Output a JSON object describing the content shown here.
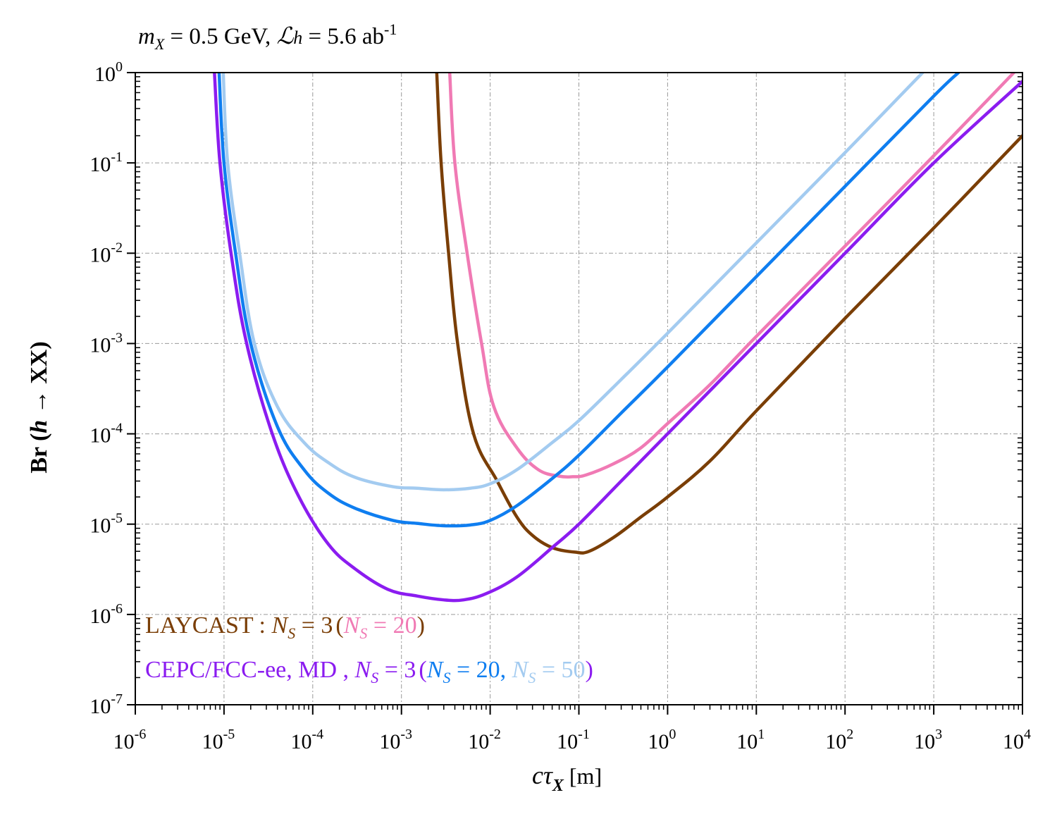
{
  "chart_data": {
    "type": "line",
    "title_parts": {
      "m": "m",
      "sub_x": "X",
      "eq1": " = 0.5 GeV, ",
      "L": "ℒ",
      "h": "h",
      "eq2": " = 5.6 ab",
      "sup": "-1"
    },
    "xlabel": {
      "main": "cτ",
      "sub": "X",
      "unit": " [m]"
    },
    "ylabel": {
      "pre": "Br (",
      "h": "h",
      "post": " → XX)"
    },
    "xscale": "log",
    "yscale": "log",
    "xlim": [
      1e-06,
      10000.0
    ],
    "ylim": [
      1e-07,
      1
    ],
    "x_ticks": [
      {
        "base": "10",
        "exp": "-6"
      },
      {
        "base": "10",
        "exp": "-5"
      },
      {
        "base": "10",
        "exp": "-4"
      },
      {
        "base": "10",
        "exp": "-3"
      },
      {
        "base": "10",
        "exp": "-2"
      },
      {
        "base": "10",
        "exp": "-1"
      },
      {
        "base": "10",
        "exp": "0"
      },
      {
        "base": "10",
        "exp": "1"
      },
      {
        "base": "10",
        "exp": "2"
      },
      {
        "base": "10",
        "exp": "3"
      },
      {
        "base": "10",
        "exp": "4"
      }
    ],
    "y_ticks": [
      {
        "base": "10",
        "exp": "-7"
      },
      {
        "base": "10",
        "exp": "-6"
      },
      {
        "base": "10",
        "exp": "-5"
      },
      {
        "base": "10",
        "exp": "-4"
      },
      {
        "base": "10",
        "exp": "-3"
      },
      {
        "base": "10",
        "exp": "-2"
      },
      {
        "base": "10",
        "exp": "-1"
      },
      {
        "base": "10",
        "exp": "0"
      }
    ],
    "grid": true,
    "series": [
      {
        "name": "LAYCAST N_S = 3",
        "color": "#7a3e06",
        "points": [
          [
            0.0025,
            1
          ],
          [
            0.0028,
            0.1
          ],
          [
            0.0034,
            0.01
          ],
          [
            0.0043,
            0.001
          ],
          [
            0.0065,
            0.0001
          ],
          [
            0.012,
            3e-05
          ],
          [
            0.02,
            1.2e-05
          ],
          [
            0.03,
            7.5e-06
          ],
          [
            0.05,
            5.5e-06
          ],
          [
            0.09,
            4.9e-06
          ],
          [
            0.13,
            5e-06
          ],
          [
            0.25,
            7.2e-06
          ],
          [
            0.5,
            1.2e-05
          ],
          [
            1,
            2e-05
          ],
          [
            3,
            5e-05
          ],
          [
            10,
            0.00018
          ],
          [
            100,
            0.0019
          ],
          [
            1000,
            0.019
          ],
          [
            10000,
            0.2
          ]
        ]
      },
      {
        "name": "LAYCAST N_S = 20",
        "color": "#f07ab4",
        "points": [
          [
            0.0035,
            1
          ],
          [
            0.004,
            0.1
          ],
          [
            0.0055,
            0.01
          ],
          [
            0.008,
            0.001
          ],
          [
            0.011,
            0.0002
          ],
          [
            0.02,
            7e-05
          ],
          [
            0.035,
            4e-05
          ],
          [
            0.06,
            3.4e-05
          ],
          [
            0.085,
            3.35e-05
          ],
          [
            0.12,
            3.5e-05
          ],
          [
            0.25,
            4.7e-05
          ],
          [
            0.5,
            7e-05
          ],
          [
            1,
            0.00013
          ],
          [
            3,
            0.00035
          ],
          [
            10,
            0.0012
          ],
          [
            100,
            0.012
          ],
          [
            1000,
            0.12
          ],
          [
            8000,
            1
          ]
        ]
      },
      {
        "name": "CEPC/FCC-ee, MD N_S = 3",
        "color": "#8b1cf0",
        "points": [
          [
            7.8e-06,
            1
          ],
          [
            9e-06,
            0.1
          ],
          [
            1.2e-05,
            0.01
          ],
          [
            1.8e-05,
            0.001
          ],
          [
            3.5e-05,
            0.0001
          ],
          [
            7e-05,
            2e-05
          ],
          [
            0.00015,
            6e-06
          ],
          [
            0.0003,
            3.2e-06
          ],
          [
            0.0007,
            1.9e-06
          ],
          [
            0.0015,
            1.6e-06
          ],
          [
            0.003,
            1.45e-06
          ],
          [
            0.005,
            1.45e-06
          ],
          [
            0.009,
            1.7e-06
          ],
          [
            0.02,
            2.6e-06
          ],
          [
            0.05,
            5.5e-06
          ],
          [
            0.1,
            1e-05
          ],
          [
            0.3,
            3e-05
          ],
          [
            1,
            0.0001
          ],
          [
            10,
            0.001
          ],
          [
            100,
            0.01
          ],
          [
            1000,
            0.1
          ],
          [
            10000,
            0.8
          ]
        ]
      },
      {
        "name": "CEPC/FCC-ee, MD N_S = 20",
        "color": "#0f7ef0",
        "points": [
          [
            8.8e-06,
            1
          ],
          [
            1e-05,
            0.1
          ],
          [
            1.35e-05,
            0.01
          ],
          [
            2e-05,
            0.001
          ],
          [
            4e-05,
            0.00012
          ],
          [
            8e-05,
            4e-05
          ],
          [
            0.00015,
            2.2e-05
          ],
          [
            0.0003,
            1.5e-05
          ],
          [
            0.0008,
            1.1e-05
          ],
          [
            0.0015,
            1.02e-05
          ],
          [
            0.003,
            9.6e-06
          ],
          [
            0.006,
            9.8e-06
          ],
          [
            0.01,
            1.1e-05
          ],
          [
            0.02,
            1.6e-05
          ],
          [
            0.05,
            3.2e-05
          ],
          [
            0.1,
            5.8e-05
          ],
          [
            0.3,
            0.00017
          ],
          [
            1,
            0.00055
          ],
          [
            10,
            0.0055
          ],
          [
            100,
            0.055
          ],
          [
            1000,
            0.55
          ],
          [
            1900,
            1
          ]
        ]
      },
      {
        "name": "CEPC/FCC-ee, MD N_S = 50",
        "color": "#a3cbf0",
        "points": [
          [
            9.8e-06,
            1
          ],
          [
            1.1e-05,
            0.1
          ],
          [
            1.5e-05,
            0.01
          ],
          [
            2.2e-05,
            0.001
          ],
          [
            4e-05,
            0.0002
          ],
          [
            8e-05,
            8e-05
          ],
          [
            0.00015,
            4.8e-05
          ],
          [
            0.0003,
            3.3e-05
          ],
          [
            0.0008,
            2.6e-05
          ],
          [
            0.0015,
            2.5e-05
          ],
          [
            0.003,
            2.4e-05
          ],
          [
            0.006,
            2.5e-05
          ],
          [
            0.01,
            2.8e-05
          ],
          [
            0.02,
            4e-05
          ],
          [
            0.05,
            8e-05
          ],
          [
            0.1,
            0.00014
          ],
          [
            0.3,
            0.0004
          ],
          [
            1,
            0.0013
          ],
          [
            10,
            0.013
          ],
          [
            100,
            0.13
          ],
          [
            750,
            1
          ]
        ]
      }
    ],
    "legend": {
      "placement": "bottom-left",
      "line1": {
        "text": "LAYCAST : ",
        "n": "N",
        "s": "S",
        "eq": " = 3",
        "paren_open": "(",
        "n2": "N",
        "s2": "S",
        "eq2": " = 20",
        "paren_close": ")",
        "color": "#7a3e06",
        "color_alt": "#f07ab4"
      },
      "line2": {
        "text": "CEPC/FCC-ee, MD , ",
        "n": "N",
        "s": "S",
        "eq": " = 3",
        "paren_open": "(",
        "n2": "N",
        "s2": "S",
        "eq2": " = 20, ",
        "n3": "N",
        "s3": "S",
        "eq3": " = 50",
        "paren_close": ")",
        "color": "#8b1cf0",
        "color_alt": "#0f7ef0",
        "color_alt2": "#a3cbf0"
      }
    }
  }
}
